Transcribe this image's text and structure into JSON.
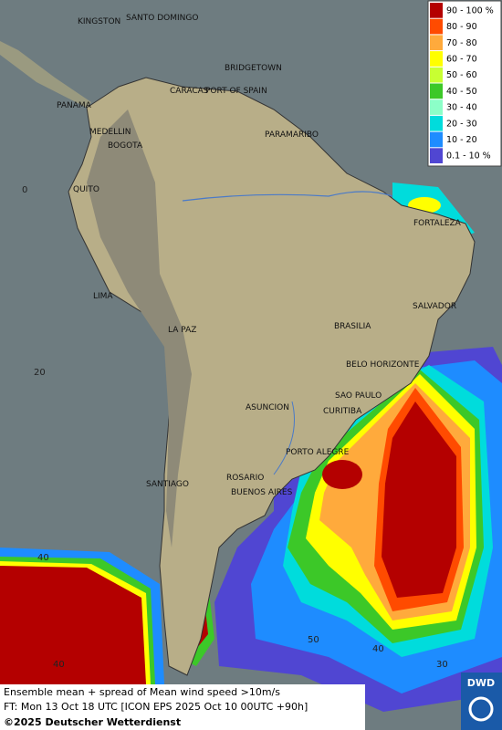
{
  "legend": {
    "entries": [
      {
        "label": "90 - 100 %",
        "color": "#b40000"
      },
      {
        "label": "80 - 90",
        "color": "#ff4b00"
      },
      {
        "label": "70 - 80",
        "color": "#ffaa3c"
      },
      {
        "label": "60 - 70",
        "color": "#ffff00"
      },
      {
        "label": "50 - 60",
        "color": "#c8ff32"
      },
      {
        "label": "40 - 50",
        "color": "#3cc828"
      },
      {
        "label": "30 - 40",
        "color": "#8cffc8"
      },
      {
        "label": "20 - 30",
        "color": "#00dcdc"
      },
      {
        "label": "10 - 20",
        "color": "#1e8cff"
      },
      {
        "label": "0.1 - 10 %",
        "color": "#5046d2"
      }
    ]
  },
  "cities": [
    "KINGSTON",
    "SANTO DOMINGO",
    "BRIDGETOWN",
    "CARACAS",
    "PORT OF SPAIN",
    "PANAMA",
    "MEDELLIN",
    "BOGOTA",
    "PARAMARIBO",
    "QUITO",
    "FORTALEZA",
    "LIMA",
    "SALVADOR",
    "BRASILIA",
    "LA PAZ",
    "BELO HORIZONTE",
    "SAO PAULO",
    "ASUNCION",
    "CURITIBA",
    "PORTO ALEGRE",
    "ROSARIO",
    "BUENOS AIRES",
    "SANTIAGO"
  ],
  "grid_labels": [
    "0",
    "20",
    "40",
    "40",
    "50",
    "40",
    "30"
  ],
  "footer": {
    "line1": "Ensemble mean + spread of Mean wind speed >10m/s",
    "line2": "FT: Mon 13 Oct 18 UTC [ICON EPS 2025 Oct 10 00UTC +90h]",
    "line3": "©2025 Deutscher Wetterdienst",
    "logo": "DWD"
  }
}
